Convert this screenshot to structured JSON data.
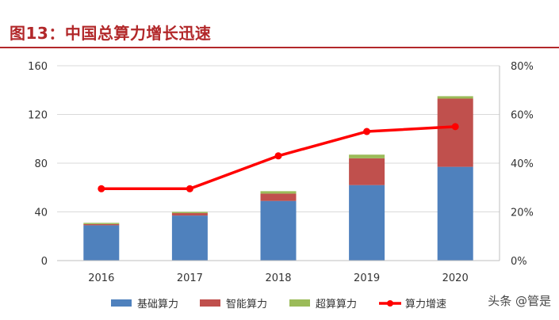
{
  "title": "图13：中国总算力增长迅速",
  "watermark": "头条 @管是",
  "colors": {
    "title": "#b2282a",
    "basic": "#4f81bd",
    "smart": "#c0504d",
    "super": "#9bbb59",
    "growth": "#ff0000",
    "grid": "#d9d9d9",
    "text": "#333333"
  },
  "chart_data": {
    "type": "bar",
    "stacked": true,
    "categories": [
      "2016",
      "2017",
      "2018",
      "2019",
      "2020"
    ],
    "series": [
      {
        "name": "基础算力",
        "axis": "left",
        "color": "#4f81bd",
        "values": [
          29,
          37,
          49,
          62,
          77
        ]
      },
      {
        "name": "智能算力",
        "axis": "left",
        "color": "#c0504d",
        "values": [
          1,
          2,
          6,
          22,
          56
        ]
      },
      {
        "name": "超算算力",
        "axis": "left",
        "color": "#9bbb59",
        "values": [
          1,
          1,
          2,
          3,
          2
        ]
      }
    ],
    "line_series": {
      "name": "算力增速",
      "axis": "right",
      "color": "#ff0000",
      "values": [
        0.295,
        0.295,
        0.43,
        0.53,
        0.55
      ]
    },
    "left_axis": {
      "ylim": [
        0,
        160
      ],
      "ticks": [
        "0",
        "40",
        "80",
        "120",
        "160"
      ]
    },
    "right_axis": {
      "ylim": [
        0,
        0.8
      ],
      "ticks": [
        "0%",
        "20%",
        "40%",
        "60%",
        "80%"
      ]
    },
    "grid": true,
    "legend": "bottom"
  }
}
